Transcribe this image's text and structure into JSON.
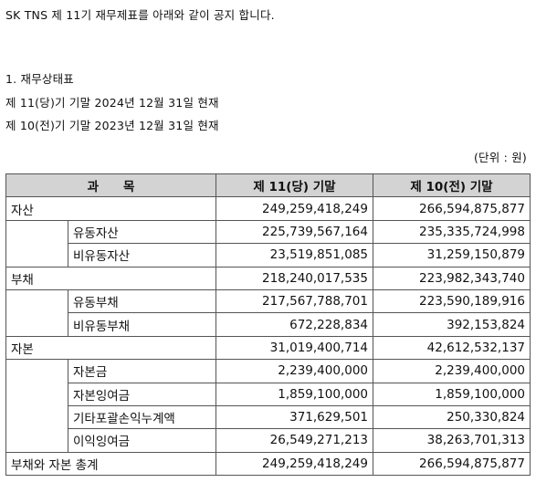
{
  "notice": {
    "intro": "SK TNS 제 11기 재무제표를 아래와 같이 공지 합니다.",
    "section_title": "1. 재무상태표",
    "current_period": "제 11(당)기 기말 2024년 12월 31일 현재",
    "prior_period": "제 10(전)기 기말 2023년 12월 31일 현재",
    "unit": "(단위 : 원)"
  },
  "table": {
    "headers": {
      "account": "과　　목",
      "current": "제 11(당) 기말",
      "prior": "제 10(전) 기말"
    },
    "groups": [
      {
        "label": "자산",
        "current": "249,259,418,249",
        "prior": "266,594,875,877",
        "items": [
          {
            "label": "유동자산",
            "current": "225,739,567,164",
            "prior": "235,335,724,998"
          },
          {
            "label": "비유동자산",
            "current": "23,519,851,085",
            "prior": "31,259,150,879"
          }
        ]
      },
      {
        "label": "부채",
        "current": "218,240,017,535",
        "prior": "223,982,343,740",
        "items": [
          {
            "label": "유동부채",
            "current": "217,567,788,701",
            "prior": "223,590,189,916"
          },
          {
            "label": "비유동부채",
            "current": "672,228,834",
            "prior": "392,153,824"
          }
        ]
      },
      {
        "label": "자본",
        "current": "31,019,400,714",
        "prior": "42,612,532,137",
        "items": [
          {
            "label": "자본금",
            "current": "2,239,400,000",
            "prior": "2,239,400,000"
          },
          {
            "label": "자본잉여금",
            "current": "1,859,100,000",
            "prior": "1,859,100,000"
          },
          {
            "label": "기타포괄손익누계액",
            "current": "371,629,501",
            "prior": "250,330,824"
          },
          {
            "label": "이익잉여금",
            "current": "26,549,271,213",
            "prior": "38,263,701,313"
          }
        ]
      }
    ],
    "total": {
      "label": "부채와 자본 총계",
      "current": "249,259,418,249",
      "prior": "266,594,875,877"
    }
  }
}
